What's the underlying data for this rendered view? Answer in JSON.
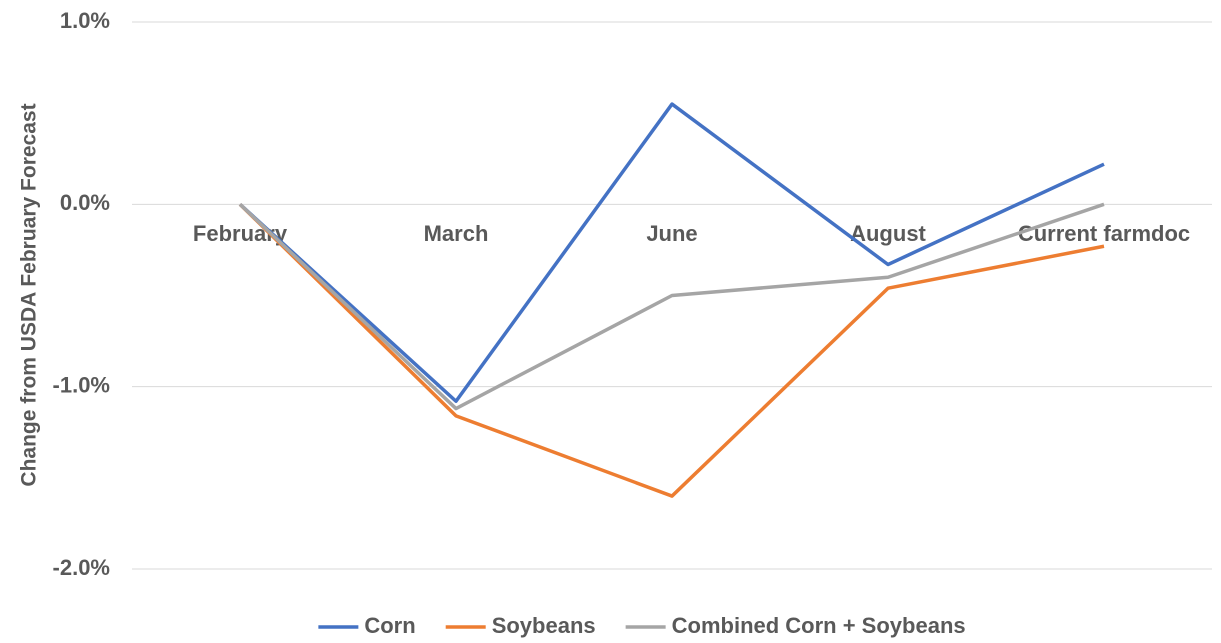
{
  "chart_data": {
    "type": "line",
    "y_label": "Change from USDA February Forecast",
    "categories": [
      "February",
      "March",
      "June",
      "August",
      "Current farmdoc"
    ],
    "series": [
      {
        "name": "Corn",
        "color": "#4472c4",
        "values": [
          0,
          -1.08,
          0.55,
          -0.33,
          0.22
        ]
      },
      {
        "name": "Soybeans",
        "color": "#ed7d31",
        "values": [
          0,
          -1.16,
          -1.6,
          -0.46,
          -0.23
        ]
      },
      {
        "name": "Combined Corn + Soybeans",
        "color": "#a5a5a5",
        "values": [
          0,
          -1.12,
          -0.5,
          -0.4,
          0
        ]
      }
    ],
    "ylim": [
      -2,
      1
    ],
    "yticks": [
      {
        "value": -2,
        "label": "-2.0%"
      },
      {
        "value": -1,
        "label": "-1.0%"
      },
      {
        "value": 0,
        "label": "0.0%"
      },
      {
        "value": 1,
        "label": "1.0%"
      }
    ],
    "grid": true,
    "legend": "bottom"
  }
}
